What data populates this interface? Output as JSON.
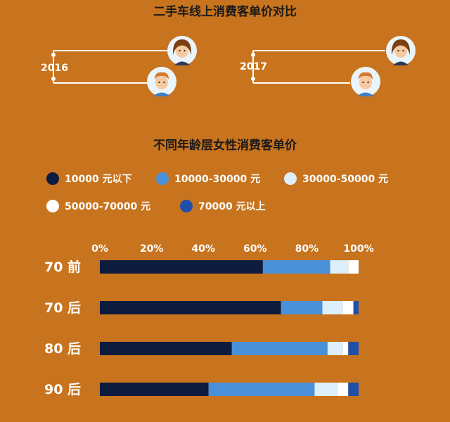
{
  "top": {
    "title": "二手车线上消费客单价对比",
    "years": [
      "2016",
      "2017"
    ]
  },
  "colors": {
    "background": "#C8731D",
    "dark_navy": "#0D1B3E",
    "medium_blue": "#4A90D9",
    "light_blue": "#DCEFFA",
    "white": "#FFFFFF",
    "royal_blue": "#1F4FA8"
  },
  "chart_data": {
    "type": "bar",
    "orientation": "horizontal",
    "stacked": true,
    "title": "不同年龄层女性消费客单价",
    "categories": [
      "70 前",
      "70 后",
      "80 后",
      "90 后"
    ],
    "x_ticks": [
      "0%",
      "20%",
      "40%",
      "60%",
      "80%",
      "100%"
    ],
    "xlim": [
      0,
      100
    ],
    "legend": "top",
    "series": [
      {
        "name": "10000 元以下",
        "color": "#0D1B3E",
        "values": [
          63,
          70,
          51,
          42
        ]
      },
      {
        "name": "10000-30000 元",
        "color": "#4A90D9",
        "values": [
          26,
          16,
          37,
          41
        ]
      },
      {
        "name": "30000-50000 元",
        "color": "#DCEFFA",
        "values": [
          7,
          8,
          6,
          9
        ]
      },
      {
        "name": "50000-70000 元",
        "color": "#FFFFFF",
        "values": [
          4,
          4,
          2,
          4
        ]
      },
      {
        "name": "70000 元以上",
        "color": "#1F4FA8",
        "values": [
          0,
          2,
          4,
          4
        ]
      }
    ]
  }
}
